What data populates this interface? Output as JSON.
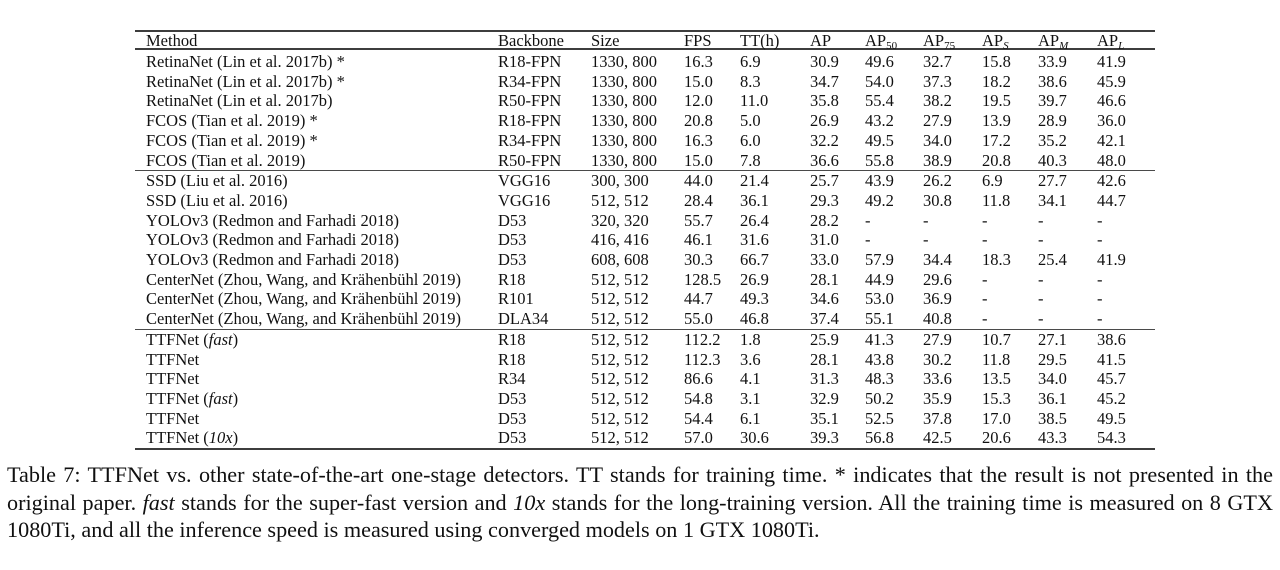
{
  "table": {
    "columns": [
      {
        "key": "method",
        "label": "Method"
      },
      {
        "key": "backbone",
        "label": "Backbone"
      },
      {
        "key": "size",
        "label": "Size"
      },
      {
        "key": "fps",
        "label": "FPS"
      },
      {
        "key": "tt",
        "label": "TT(h)"
      },
      {
        "key": "ap",
        "label": "AP"
      },
      {
        "key": "ap50",
        "label": "AP",
        "sub": "50",
        "sub_italic": false
      },
      {
        "key": "ap75",
        "label": "AP",
        "sub": "75",
        "sub_italic": false
      },
      {
        "key": "aps",
        "label": "AP",
        "sub": "S",
        "sub_italic": true
      },
      {
        "key": "apm",
        "label": "AP",
        "sub": "M",
        "sub_italic": true
      },
      {
        "key": "apl",
        "label": "AP",
        "sub": "L",
        "sub_italic": true
      }
    ],
    "groups": [
      {
        "rows": [
          {
            "method": [
              {
                "t": "RetinaNet (Lin et al. 2017b) *"
              }
            ],
            "cells": [
              "R18-FPN",
              "1330, 800",
              "16.3",
              "6.9",
              "30.9",
              "49.6",
              "32.7",
              "15.8",
              "33.9",
              "41.9"
            ],
            "bold": []
          },
          {
            "method": [
              {
                "t": "RetinaNet (Lin et al. 2017b) *"
              }
            ],
            "cells": [
              "R34-FPN",
              "1330, 800",
              "15.0",
              "8.3",
              "34.7",
              "54.0",
              "37.3",
              "18.2",
              "38.6",
              "45.9"
            ],
            "bold": []
          },
          {
            "method": [
              {
                "t": "RetinaNet (Lin et al. 2017b)"
              }
            ],
            "cells": [
              "R50-FPN",
              "1330, 800",
              "12.0",
              "11.0",
              "35.8",
              "55.4",
              "38.2",
              "19.5",
              "39.7",
              "46.6"
            ],
            "bold": []
          },
          {
            "method": [
              {
                "t": "FCOS (Tian et al. 2019) *"
              }
            ],
            "cells": [
              "R18-FPN",
              "1330, 800",
              "20.8",
              "5.0",
              "26.9",
              "43.2",
              "27.9",
              "13.9",
              "28.9",
              "36.0"
            ],
            "bold": []
          },
          {
            "method": [
              {
                "t": "FCOS (Tian et al. 2019) *"
              }
            ],
            "cells": [
              "R34-FPN",
              "1330, 800",
              "16.3",
              "6.0",
              "32.2",
              "49.5",
              "34.0",
              "17.2",
              "35.2",
              "42.1"
            ],
            "bold": []
          },
          {
            "method": [
              {
                "t": "FCOS (Tian et al. 2019)"
              }
            ],
            "cells": [
              "R50-FPN",
              "1330, 800",
              "15.0",
              "7.8",
              "36.6",
              "55.8",
              "38.9",
              "20.8",
              "40.3",
              "48.0"
            ],
            "bold": []
          }
        ]
      },
      {
        "rows": [
          {
            "method": [
              {
                "t": "SSD (Liu et al. 2016)"
              }
            ],
            "cells": [
              "VGG16",
              "300, 300",
              "44.0",
              "21.4",
              "25.7",
              "43.9",
              "26.2",
              "6.9",
              "27.7",
              "42.6"
            ],
            "bold": []
          },
          {
            "method": [
              {
                "t": "SSD (Liu et al. 2016)"
              }
            ],
            "cells": [
              "VGG16",
              "512, 512",
              "28.4",
              "36.1",
              "29.3",
              "49.2",
              "30.8",
              "11.8",
              "34.1",
              "44.7"
            ],
            "bold": []
          },
          {
            "method": [
              {
                "t": "YOLOv3 (Redmon and Farhadi 2018)"
              }
            ],
            "cells": [
              "D53",
              "320, 320",
              "55.7",
              "26.4",
              "28.2",
              "-",
              "-",
              "-",
              "-",
              "-"
            ],
            "bold": []
          },
          {
            "method": [
              {
                "t": "YOLOv3 (Redmon and Farhadi 2018)"
              }
            ],
            "cells": [
              "D53",
              "416, 416",
              "46.1",
              "31.6",
              "31.0",
              "-",
              "-",
              "-",
              "-",
              "-"
            ],
            "bold": []
          },
          {
            "method": [
              {
                "t": "YOLOv3 (Redmon and Farhadi 2018)"
              }
            ],
            "cells": [
              "D53",
              "608, 608",
              "30.3",
              "66.7",
              "33.0",
              "57.9",
              "34.4",
              "18.3",
              "25.4",
              "41.9"
            ],
            "bold": []
          },
          {
            "method": [
              {
                "t": "CenterNet (Zhou, Wang, and Krähenbühl 2019)"
              }
            ],
            "cells": [
              "R18",
              "512, 512",
              "128.5",
              "26.9",
              "28.1",
              "44.9",
              "29.6",
              "-",
              "-",
              "-"
            ],
            "bold": []
          },
          {
            "method": [
              {
                "t": "CenterNet (Zhou, Wang, and Krähenbühl 2019)"
              }
            ],
            "cells": [
              "R101",
              "512, 512",
              "44.7",
              "49.3",
              "34.6",
              "53.0",
              "36.9",
              "-",
              "-",
              "-"
            ],
            "bold": []
          },
          {
            "method": [
              {
                "t": "CenterNet (Zhou, Wang, and Krähenbühl 2019)"
              }
            ],
            "cells": [
              "DLA34",
              "512, 512",
              "55.0",
              "46.8",
              "37.4",
              "55.1",
              "40.8",
              "-",
              "-",
              "-"
            ],
            "bold": []
          }
        ]
      },
      {
        "rows": [
          {
            "method": [
              {
                "t": "TTFNet ("
              },
              {
                "t": "fast",
                "i": true
              },
              {
                "t": ")"
              }
            ],
            "cells": [
              "R18",
              "512, 512",
              "112.2",
              "1.8",
              "25.9",
              "41.3",
              "27.9",
              "10.7",
              "27.1",
              "38.6"
            ],
            "bold": [
              3
            ]
          },
          {
            "method": [
              {
                "t": "TTFNet"
              }
            ],
            "cells": [
              "R18",
              "512, 512",
              "112.3",
              "3.6",
              "28.1",
              "43.8",
              "30.2",
              "11.8",
              "29.5",
              "41.5"
            ],
            "bold": [
              3
            ]
          },
          {
            "method": [
              {
                "t": "TTFNet"
              }
            ],
            "cells": [
              "R34",
              "512, 512",
              "86.6",
              "4.1",
              "31.3",
              "48.3",
              "33.6",
              "13.5",
              "34.0",
              "45.7"
            ],
            "bold": [
              3
            ]
          },
          {
            "method": [
              {
                "t": "TTFNet ("
              },
              {
                "t": "fast",
                "i": true
              },
              {
                "t": ")"
              }
            ],
            "cells": [
              "D53",
              "512, 512",
              "54.8",
              "3.1",
              "32.9",
              "50.2",
              "35.9",
              "15.3",
              "36.1",
              "45.2"
            ],
            "bold": [
              3
            ]
          },
          {
            "method": [
              {
                "t": "TTFNet"
              }
            ],
            "cells": [
              "D53",
              "512, 512",
              "54.4",
              "6.1",
              "35.1",
              "52.5",
              "37.8",
              "17.0",
              "38.5",
              "49.5"
            ],
            "bold": [
              3
            ]
          },
          {
            "method": [
              {
                "t": "TTFNet ("
              },
              {
                "t": "10x",
                "i": true
              },
              {
                "t": ")"
              }
            ],
            "cells": [
              "D53",
              "512, 512",
              "57.0",
              "30.6",
              "39.3",
              "56.8",
              "42.5",
              "20.6",
              "43.3",
              "54.3"
            ],
            "bold": [
              4
            ]
          }
        ]
      }
    ]
  },
  "caption": {
    "segments": [
      {
        "t": "Table 7: TTFNet vs. other state-of-the-art one-stage detectors. TT stands for training time. * indicates that the result is not presented in the original paper. "
      },
      {
        "t": "fast",
        "i": true
      },
      {
        "t": " stands for the super-fast version and "
      },
      {
        "t": "10x",
        "i": true
      },
      {
        "t": " stands for the long-training version. All the training time is measured on 8 GTX 1080Ti, and all the inference speed is measured using converged models on 1 GTX 1080Ti."
      }
    ]
  },
  "colors": {
    "text": "#111111",
    "rule": "#3d3d3d",
    "background": "#ffffff"
  }
}
